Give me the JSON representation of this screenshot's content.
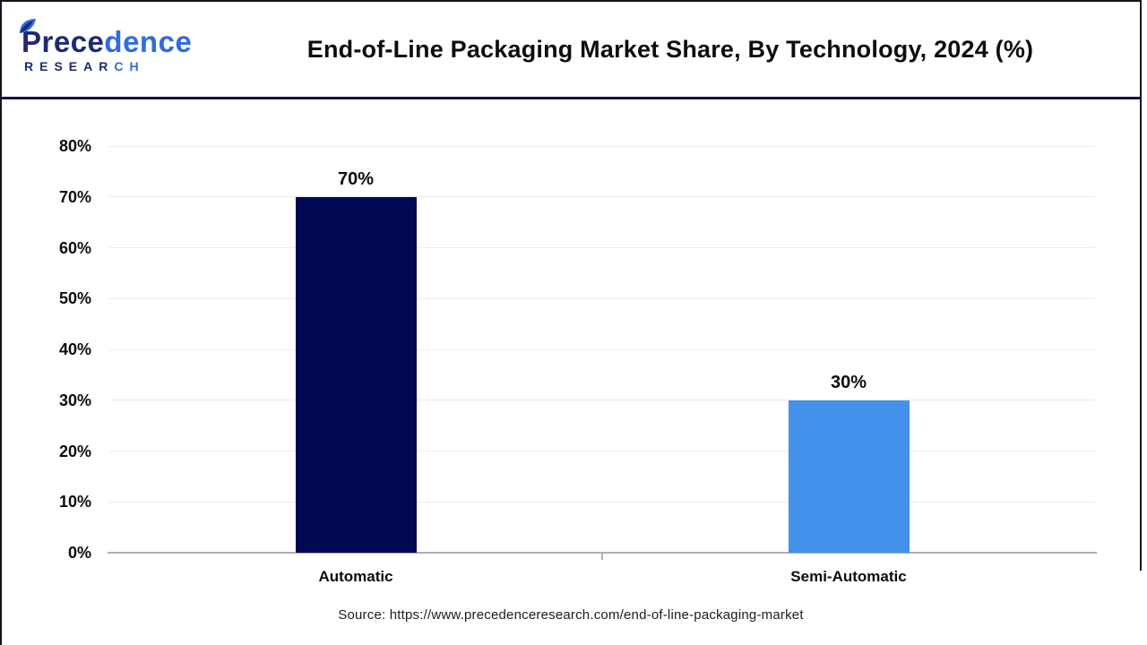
{
  "logo": {
    "brand_top_dark": "Prece",
    "brand_top_blue": "dence",
    "brand_bottom_dark": "RESEAR",
    "brand_bottom_blue": "CH",
    "dark_color": "#1e2878",
    "blue_color": "#2e6ddf"
  },
  "header": {
    "title": "End-of-Line Packaging Market Share, By Technology, 2024 (%)"
  },
  "chart_data": {
    "type": "bar",
    "title": "End-of-Line Packaging Market Share, By Technology, 2024 (%)",
    "categories": [
      "Automatic",
      "Semi-Automatic"
    ],
    "values": [
      70,
      30
    ],
    "value_labels": [
      "70%",
      "30%"
    ],
    "bar_colors": [
      "#020954",
      "#4292EB"
    ],
    "y_tick_values": [
      0,
      10,
      20,
      30,
      40,
      50,
      60,
      70,
      80
    ],
    "y_tick_labels": [
      "0%",
      "10%",
      "20%",
      "30%",
      "40%",
      "50%",
      "60%",
      "70%",
      "80%"
    ],
    "ylim": [
      0,
      80
    ],
    "xlabel": "",
    "ylabel": "",
    "grid": "horizontal-light",
    "legend": "none",
    "colors": {
      "grid": "#ebebeb",
      "axis": "#aeaeae",
      "label_text": "#0d0d0d"
    }
  },
  "footer": {
    "source": "Source: https://www.precedenceresearch.com/end-of-line-packaging-market"
  }
}
